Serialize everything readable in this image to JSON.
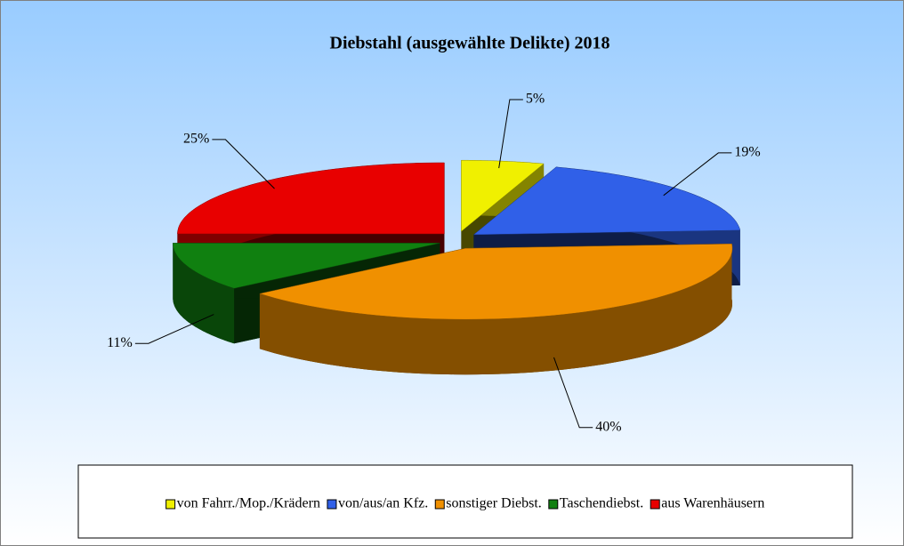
{
  "chart_data": {
    "type": "pie3d",
    "title": "Diebstahl (ausgewählte Delikte) 2018",
    "categories": [
      "von Fahrr./Mop./Krädern",
      "von/aus/an Kfz.",
      "sonstiger Diebst.",
      "Taschendiebst.",
      "aus Warenhäusern"
    ],
    "values": [
      5,
      19,
      40,
      11,
      25
    ],
    "value_labels": [
      "5%",
      "19%",
      "40%",
      "11%",
      "25%"
    ],
    "colors": [
      "#f0f000",
      "#3060e8",
      "#f09000",
      "#108010",
      "#e80000"
    ],
    "legend": "bottom"
  }
}
